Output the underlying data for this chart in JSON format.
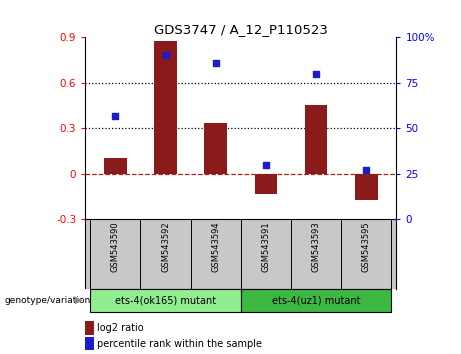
{
  "title": "GDS3747 / A_12_P110523",
  "samples": [
    "GSM543590",
    "GSM543592",
    "GSM543594",
    "GSM543591",
    "GSM543593",
    "GSM543595"
  ],
  "log2_ratio": [
    0.105,
    0.875,
    0.335,
    -0.135,
    0.455,
    -0.175
  ],
  "percentile_rank": [
    57,
    90,
    86,
    30,
    80,
    27
  ],
  "bar_color": "#8B1A1A",
  "dot_color": "#1C1CCD",
  "left_ylim": [
    -0.3,
    0.9
  ],
  "left_yticks": [
    -0.3,
    0.0,
    0.3,
    0.6,
    0.9
  ],
  "left_yticklabels": [
    "-0.3",
    "0",
    "0.3",
    "0.6",
    "0.9"
  ],
  "right_ylim": [
    0,
    100
  ],
  "right_yticks": [
    0,
    25,
    50,
    75,
    100
  ],
  "right_yticklabels": [
    "0",
    "25",
    "50",
    "75",
    "100%"
  ],
  "hlines": [
    0.3,
    0.6
  ],
  "zero_line_color": "#AA2222",
  "hline_color": "black",
  "group1_label": "ets-4(ok165) mutant",
  "group2_label": "ets-4(uz1) mutant",
  "group1_color": "#90EE90",
  "group2_color": "#3CB843",
  "group1_indices": [
    0,
    1,
    2
  ],
  "group2_indices": [
    3,
    4,
    5
  ],
  "genotype_label": "genotype/variation",
  "legend_bar_label": "log2 ratio",
  "legend_dot_label": "percentile rank within the sample",
  "bg_color": "#C8C8C8",
  "plot_bg_color": "#FFFFFF",
  "bar_width": 0.45
}
